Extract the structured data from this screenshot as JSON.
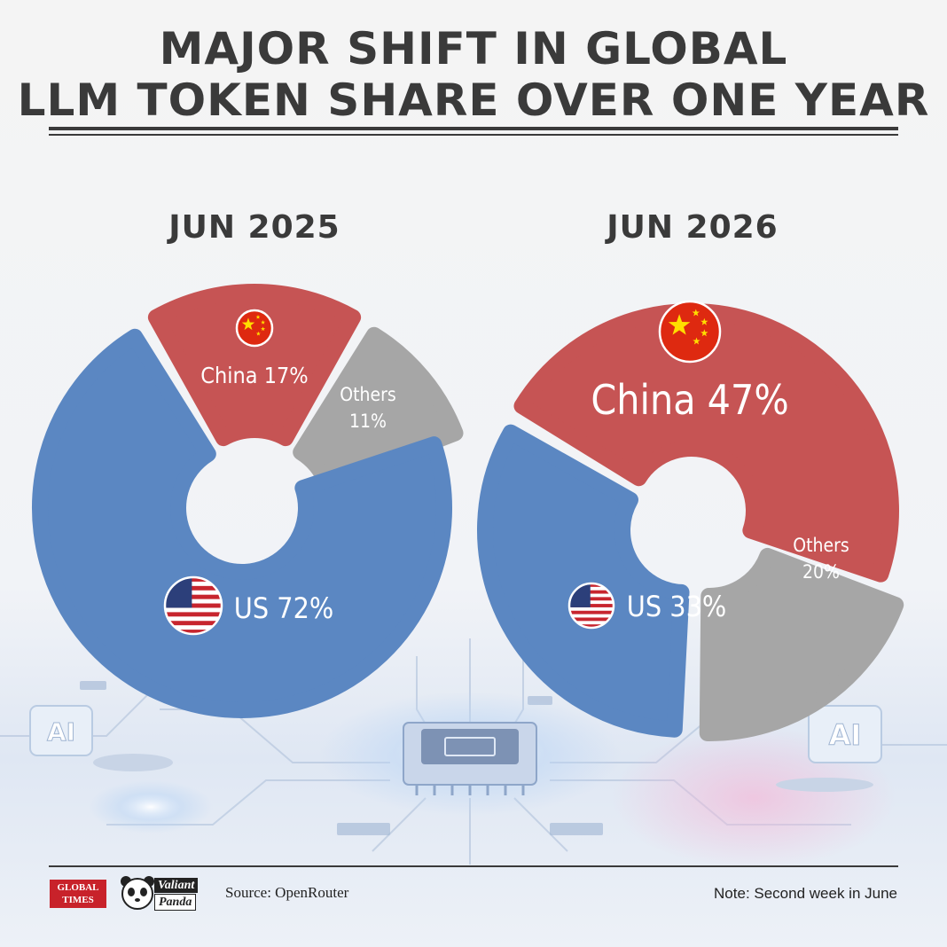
{
  "title": {
    "line1": "MAJOR SHIFT IN GLOBAL",
    "line2": "LLM TOKEN SHARE OVER ONE YEAR"
  },
  "colors": {
    "us": "#5b87c2",
    "china": "#c65454",
    "others": "#a6a6a6",
    "text_dark": "#3a3a3a"
  },
  "chart_data": [
    {
      "type": "donut",
      "title": "JUN 2025",
      "slices": [
        {
          "name": "US",
          "label": "US 72%",
          "value": 72,
          "color": "#5b87c2",
          "flag": "us-flag-icon"
        },
        {
          "name": "China",
          "label": "China 17%",
          "value": 17,
          "color": "#c65454",
          "flag": "china-flag-icon"
        },
        {
          "name": "Others",
          "label_line1": "Others",
          "label_line2": "11%",
          "value": 11,
          "color": "#a6a6a6"
        }
      ]
    },
    {
      "type": "donut",
      "title": "JUN 2026",
      "slices": [
        {
          "name": "US",
          "label": "US 33%",
          "value": 33,
          "color": "#5b87c2",
          "flag": "us-flag-icon"
        },
        {
          "name": "China",
          "label": "China 47%",
          "value": 47,
          "color": "#c65454",
          "flag": "china-flag-icon"
        },
        {
          "name": "Others",
          "label_line1": "Others",
          "label_line2": "20%",
          "value": 20,
          "color": "#a6a6a6"
        }
      ]
    }
  ],
  "decor": {
    "ai_badge": "AI"
  },
  "footer": {
    "logo_global_times_line1": "GLOBAL",
    "logo_global_times_line2": "TIMES",
    "logo_valiant_line1": "Valiant",
    "logo_valiant_line2": "Panda",
    "source": "Source: OpenRouter",
    "note": "Note: Second week in June"
  }
}
